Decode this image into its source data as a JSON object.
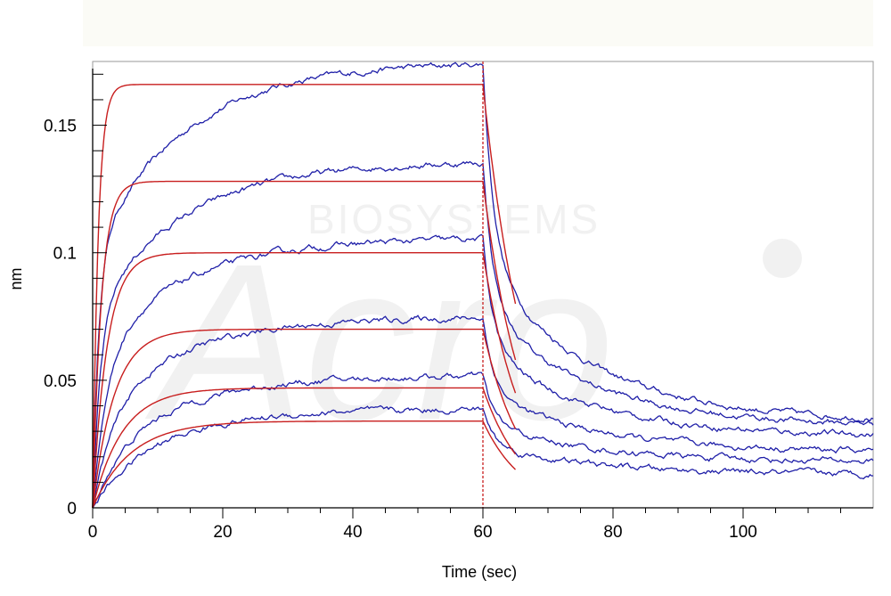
{
  "chart_data": {
    "type": "line",
    "xlabel": "Time (sec)",
    "ylabel": "nm",
    "xlim": [
      0,
      120
    ],
    "ylim": [
      0,
      0.175
    ],
    "xticks": [
      0,
      20,
      40,
      60,
      80,
      100
    ],
    "xtick_labels": [
      "0",
      "20",
      "40",
      "60",
      "80",
      "100"
    ],
    "yticks": [
      0,
      0.05,
      0.1,
      0.15
    ],
    "ytick_labels": [
      "0",
      "0.05",
      "0.1",
      "0.15"
    ],
    "grid": false,
    "legend": "none",
    "association_end": 60,
    "watermark": {
      "logo": "Acro",
      "text": "BIOSYSTEMS"
    },
    "colors": {
      "measured": "#1f1fa8",
      "fit": "#c81e1e",
      "marker": "#c81e1e",
      "axis": "#000000",
      "frame": "#9a9a9a"
    },
    "series_measured": [
      {
        "plateau": 0.166,
        "rate": 1.1,
        "assoc_end": 0.175,
        "dissoc_end": 0.034,
        "fast_frac": 0.6
      },
      {
        "plateau": 0.128,
        "rate": 0.8,
        "assoc_end": 0.136,
        "dissoc_end": 0.032,
        "fast_frac": 0.6
      },
      {
        "plateau": 0.1,
        "rate": 0.45,
        "assoc_end": 0.106,
        "dissoc_end": 0.028,
        "fast_frac": 0.6
      },
      {
        "plateau": 0.07,
        "rate": 0.3,
        "assoc_end": 0.075,
        "dissoc_end": 0.022,
        "fast_frac": 0.55
      },
      {
        "plateau": 0.047,
        "rate": 0.2,
        "assoc_end": 0.052,
        "dissoc_end": 0.018,
        "fast_frac": 0.5
      },
      {
        "plateau": 0.034,
        "rate": 0.15,
        "assoc_end": 0.039,
        "dissoc_end": 0.013,
        "fast_frac": 0.5
      }
    ],
    "series_fit": [
      {
        "plateau": 0.166,
        "rate": 1.2,
        "dissoc_end_at_65": 0.08
      },
      {
        "plateau": 0.128,
        "rate": 0.75,
        "dissoc_end_at_65": 0.058
      },
      {
        "plateau": 0.1,
        "rate": 0.45,
        "dissoc_end_at_65": 0.045
      },
      {
        "plateau": 0.07,
        "rate": 0.3,
        "dissoc_end_at_65": 0.031
      },
      {
        "plateau": 0.047,
        "rate": 0.22,
        "dissoc_end_at_65": 0.021
      },
      {
        "plateau": 0.034,
        "rate": 0.17,
        "dissoc_end_at_65": 0.015
      }
    ]
  }
}
